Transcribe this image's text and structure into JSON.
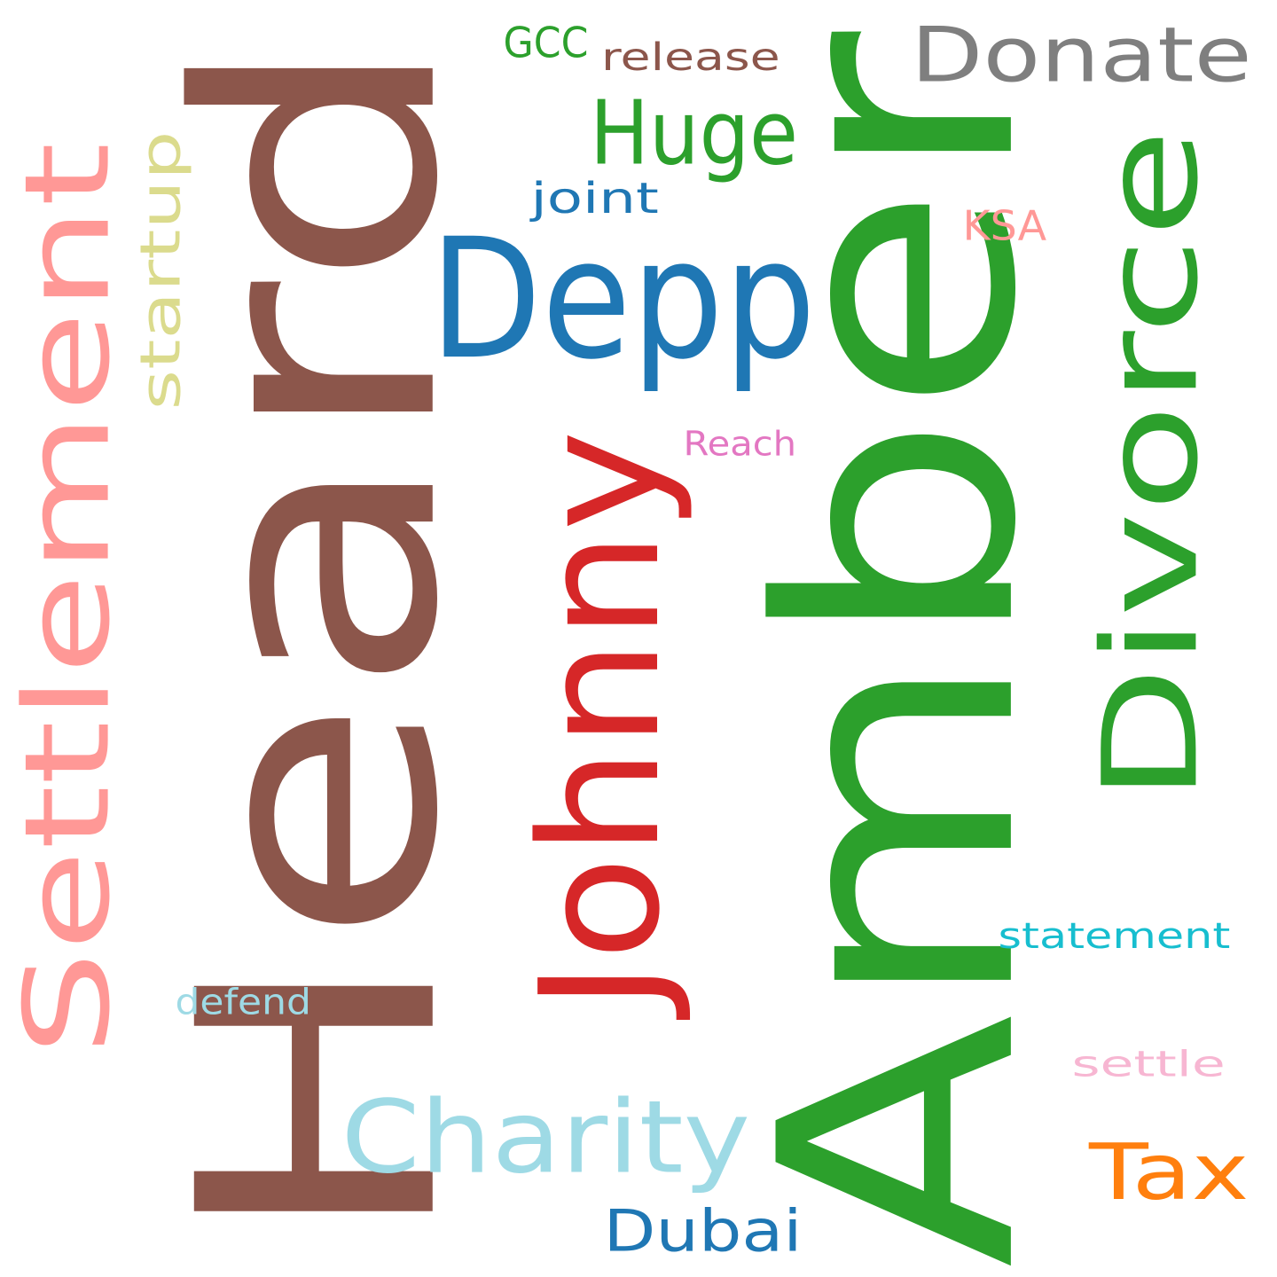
{
  "words": [
    {
      "id": "amber",
      "text": "Amber",
      "color": "#2ca02c",
      "orientation": "vertical"
    },
    {
      "id": "heard",
      "text": "Heard",
      "color": "#8c564b",
      "orientation": "vertical"
    },
    {
      "id": "settlement",
      "text": "Settlement",
      "color": "#ff9896",
      "orientation": "vertical"
    },
    {
      "id": "johnny",
      "text": "Johnny",
      "color": "#d62728",
      "orientation": "vertical"
    },
    {
      "id": "divorce",
      "text": "Divorce",
      "color": "#2ca02c",
      "orientation": "vertical"
    },
    {
      "id": "depp",
      "text": "Depp",
      "color": "#1f77b4",
      "orientation": "horizontal"
    },
    {
      "id": "donate",
      "text": "Donate",
      "color": "#7f7f7f",
      "orientation": "horizontal"
    },
    {
      "id": "charity",
      "text": "Charity",
      "color": "#9edae5",
      "orientation": "horizontal"
    },
    {
      "id": "huge",
      "text": "Huge",
      "color": "#2ca02c",
      "orientation": "horizontal"
    },
    {
      "id": "tax",
      "text": "Tax",
      "color": "#ff7f0e",
      "orientation": "horizontal"
    },
    {
      "id": "dubai",
      "text": "Dubai",
      "color": "#1f77b4",
      "orientation": "horizontal"
    },
    {
      "id": "startup",
      "text": "startup",
      "color": "#dbdb8d",
      "orientation": "vertical"
    },
    {
      "id": "statement",
      "text": "statement",
      "color": "#17becf",
      "orientation": "horizontal"
    },
    {
      "id": "release",
      "text": "release",
      "color": "#8c564b",
      "orientation": "horizontal"
    },
    {
      "id": "gcc",
      "text": "GCC",
      "color": "#2ca02c",
      "orientation": "horizontal"
    },
    {
      "id": "joint",
      "text": "joint",
      "color": "#1f77b4",
      "orientation": "horizontal"
    },
    {
      "id": "ksa",
      "text": "KSA",
      "color": "#ff9896",
      "orientation": "horizontal"
    },
    {
      "id": "reach",
      "text": "Reach",
      "color": "#e377c2",
      "orientation": "horizontal"
    },
    {
      "id": "defend",
      "text": "defend",
      "color": "#9edae5",
      "orientation": "horizontal"
    },
    {
      "id": "settle",
      "text": "settle",
      "color": "#f7b6d2",
      "orientation": "horizontal"
    }
  ]
}
